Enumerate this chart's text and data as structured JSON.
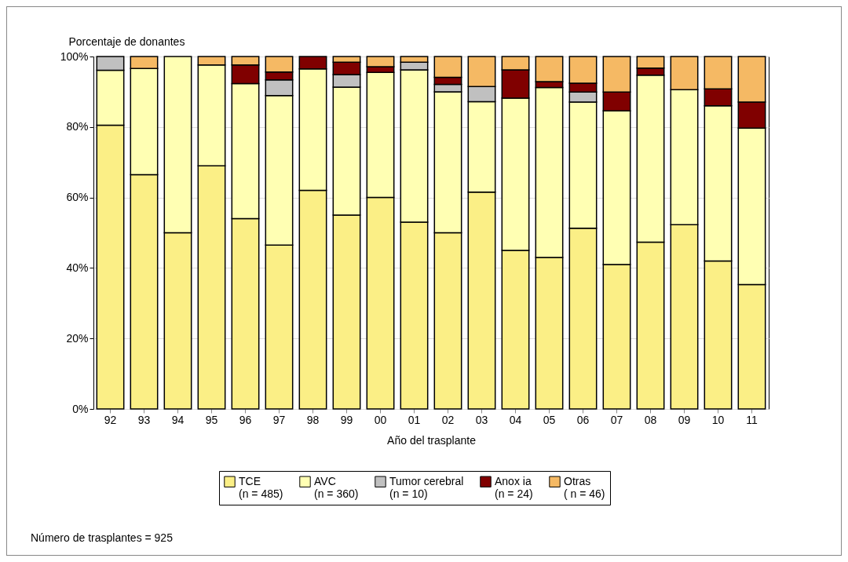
{
  "chart_data": {
    "type": "bar",
    "stacked": true,
    "ylabel": "Porcentaje de donantes",
    "xlabel": "Año del trasplante",
    "categories": [
      "92",
      "93",
      "94",
      "95",
      "96",
      "97",
      "98",
      "99",
      "00",
      "01",
      "02",
      "03",
      "04",
      "05",
      "06",
      "07",
      "08",
      "09",
      "10",
      "11"
    ],
    "series": [
      {
        "name": "TCE\n(n = 485)",
        "color": "#fbef86",
        "values": [
          80.5,
          66.5,
          50,
          69,
          54,
          46.5,
          62,
          55,
          60,
          53,
          50,
          61.5,
          45,
          43,
          51.3,
          41,
          47.3,
          52.3,
          42,
          35.3
        ]
      },
      {
        "name": "AVC\n(n = 360)",
        "color": "#ffffb3",
        "values": [
          15.6,
          30.1,
          50,
          28.6,
          38.3,
          42.4,
          34.5,
          36.3,
          35.5,
          43.2,
          40,
          25.7,
          43.2,
          48.2,
          35.8,
          43.6,
          47.4,
          38.3,
          44,
          44.4
        ]
      },
      {
        "name": "Tumor cerebral\n(n = 10)",
        "color": "#c0c0c0",
        "values": [
          3.9,
          null,
          null,
          null,
          null,
          4.5,
          null,
          3.6,
          null,
          2.2,
          2.1,
          4.3,
          null,
          null,
          2.8,
          null,
          null,
          null,
          null,
          null
        ]
      },
      {
        "name": "Anox ia\n(n = 24)",
        "color": "#800000",
        "values": [
          null,
          null,
          null,
          null,
          5.3,
          2.2,
          3.5,
          3.5,
          1.6,
          null,
          2,
          null,
          8,
          1.7,
          2.5,
          5.3,
          2,
          null,
          4.8,
          7.4
        ]
      },
      {
        "name": "Otras\n( n = 46)",
        "color": "#f5b964",
        "values": [
          null,
          3.4,
          null,
          2.4,
          2.4,
          4.4,
          null,
          1.6,
          2.9,
          1.6,
          5.9,
          8.5,
          3.8,
          7.1,
          7.6,
          10.1,
          3.3,
          9.4,
          9.2,
          12.9
        ]
      }
    ],
    "ylim": [
      0,
      100
    ],
    "yticks": [
      {
        "value": 0,
        "label": "0%"
      },
      {
        "value": 20,
        "label": "20%"
      },
      {
        "value": 40,
        "label": "40%"
      },
      {
        "value": 60,
        "label": "60%"
      },
      {
        "value": 80,
        "label": "80%"
      },
      {
        "value": 100,
        "label": "100%"
      }
    ],
    "grid": "y",
    "legend": "bottom",
    "annotations": [
      "Número de trasplantes = 925"
    ]
  }
}
